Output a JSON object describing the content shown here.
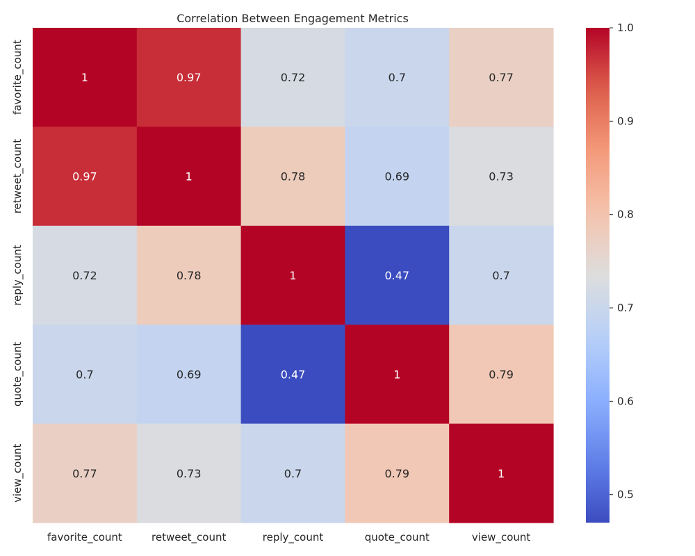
{
  "chart_data": {
    "type": "heatmap",
    "title": "Correlation Between Engagement Metrics",
    "row_labels": [
      "favorite_count",
      "retweet_count",
      "reply_count",
      "quote_count",
      "view_count"
    ],
    "col_labels": [
      "favorite_count",
      "retweet_count",
      "reply_count",
      "quote_count",
      "view_count"
    ],
    "values": [
      [
        1,
        0.97,
        0.72,
        0.7,
        0.77
      ],
      [
        0.97,
        1,
        0.78,
        0.69,
        0.73
      ],
      [
        0.72,
        0.78,
        1,
        0.47,
        0.7
      ],
      [
        0.7,
        0.69,
        0.47,
        1,
        0.79
      ],
      [
        0.77,
        0.73,
        0.7,
        0.79,
        1
      ]
    ],
    "annotations": [
      [
        "1",
        "0.97",
        "0.72",
        "0.7",
        "0.77"
      ],
      [
        "0.97",
        "1",
        "0.78",
        "0.69",
        "0.73"
      ],
      [
        "0.72",
        "0.78",
        "1",
        "0.47",
        "0.7"
      ],
      [
        "0.7",
        "0.69",
        "0.47",
        "1",
        "0.79"
      ],
      [
        "0.77",
        "0.73",
        "0.7",
        "0.79",
        "1"
      ]
    ],
    "colormap": "coolwarm",
    "vmin": 0.47,
    "vmax": 1.0,
    "colorbar_ticks": [
      "0.5",
      "0.6",
      "0.7",
      "0.8",
      "0.9",
      "1.0"
    ],
    "colorbar_tick_values": [
      0.5,
      0.6,
      0.7,
      0.8,
      0.9,
      1.0
    ]
  }
}
